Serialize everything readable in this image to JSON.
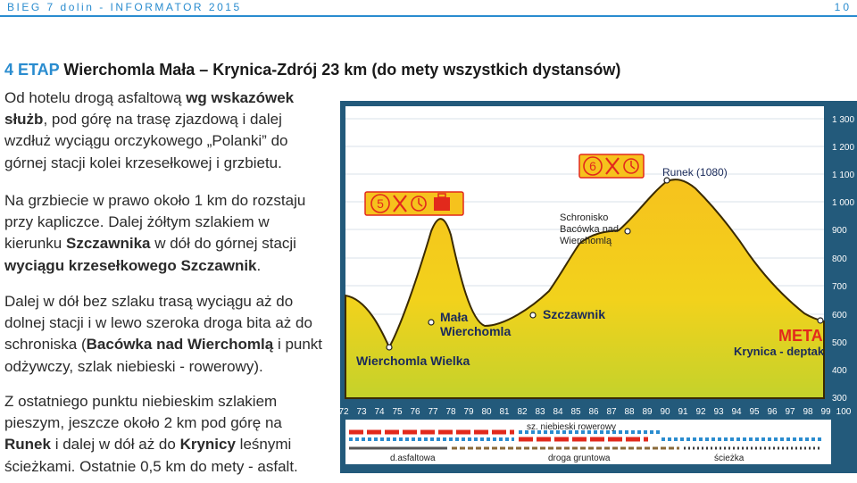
{
  "header": {
    "left": "BIEG 7 dolin - INFORMATOR 2015",
    "page": "10"
  },
  "title": {
    "etap": "4 ETAP",
    "rest": " Wierchomla Mała – Krynica-Zdrój 23 km (do mety wszystkich dystansów)"
  },
  "paragraphs": {
    "p1": {
      "a": "Od hotelu drogą asfaltową ",
      "b": "wg wskazówek służb",
      "c": ", pod górę na trasę zjazdową i dalej wzdłuż wyciągu orczykowego „Polanki” do górnej stacji kolei krzesełkowej i grzbietu."
    },
    "p2": {
      "a": "Na grzbiecie w prawo około 1 km do rozstaju przy kapliczce. Dalej żółtym szlakiem w kierunku ",
      "b": "Szczawnika",
      "c": " w dół do górnej stacji ",
      "d": "wyciągu krzesełkowego Szczawnik",
      "e": "."
    },
    "p3": {
      "a": "Dalej w dół bez szlaku trasą wyciągu aż do dolnej stacji i w lewo szeroka droga bita aż do schroniska (",
      "b": "Bacówka nad Wierchomlą",
      "c": " i punkt odżywczy, szlak niebieski - rowerowy)."
    },
    "p4": {
      "a": "Z ostatniego punktu niebieskim szlakiem pieszym, jeszcze około 2 km pod górę na ",
      "b": "Runek",
      "c": " i dalej w dół aż do ",
      "d": "Krynicy",
      "e": " leśnymi ścieżkami. Ostatnie 0,5 km do mety - asfalt."
    }
  },
  "profile": {
    "y_ticks": [
      "1 300",
      "1 200",
      "1 100",
      "1 000",
      "900",
      "800",
      "700",
      "600",
      "500",
      "400",
      "300"
    ],
    "x_ticks": [
      "72",
      "73",
      "74",
      "75",
      "76",
      "77",
      "78",
      "79",
      "80",
      "81",
      "82",
      "83",
      "84",
      "85",
      "86",
      "87",
      "88",
      "89",
      "90",
      "91",
      "92",
      "93",
      "94",
      "95",
      "96",
      "97",
      "98",
      "99",
      "100"
    ],
    "places": {
      "start": "Wierchomla Wielka",
      "mala1": "Mała",
      "mala2": "Wierchomla",
      "szczawnik": "Szczawnik",
      "schronisko1": "Schronisko",
      "schronisko2": "Bacówka nad",
      "schronisko3": "Wierchomlą",
      "runek": "Runek (1080)",
      "meta": "META",
      "krynica": "Krynica - deptak"
    },
    "checkpoints": [
      "5",
      "6"
    ],
    "surface": {
      "blue": "sz. niebieski rowerowy",
      "asphalt": "d.asfaltowa",
      "dirt": "droga gruntowa",
      "path": "ścieżka"
    },
    "colors": {
      "background": "#235a7b",
      "fill_top": "#f6c21d",
      "fill_bottom": "#c4d22b",
      "outline": "#3a2a00",
      "accent": "#e2291c"
    }
  }
}
